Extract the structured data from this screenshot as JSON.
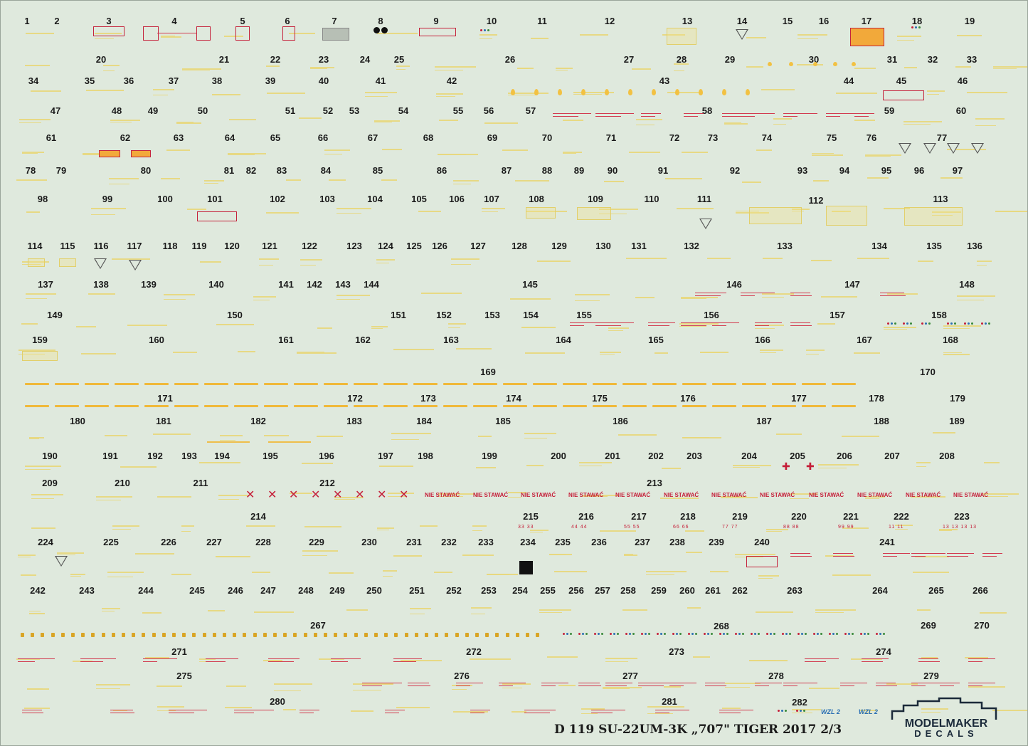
{
  "sheet": {
    "title_line": "D    119 SU-22UM-3K „707\" TIGER 2017 2/3",
    "brand_line1": "MODELMAKER",
    "brand_line2": "DECALS",
    "wzl_label": "WZL 2",
    "warning_text": "NIE STAWAĆ",
    "colors": {
      "background": "#dfe9dd",
      "stencil_yellow": "#e8d77a",
      "stencil_red": "#c51f39",
      "numbers": "#1a1a1a"
    },
    "red_number_pairs": [
      "33  33",
      "44  44",
      "55  55",
      "66  66",
      "77  77",
      "88  88",
      "99  99",
      "11  11",
      "13 13  13 13"
    ]
  },
  "numbers": [
    "1",
    "2",
    "3",
    "4",
    "5",
    "6",
    "7",
    "8",
    "9",
    "10",
    "11",
    "12",
    "13",
    "14",
    "15",
    "16",
    "17",
    "18",
    "19",
    "20",
    "21",
    "22",
    "23",
    "24",
    "25",
    "26",
    "27",
    "28",
    "29",
    "30",
    "31",
    "32",
    "33",
    "34",
    "35",
    "36",
    "37",
    "38",
    "39",
    "40",
    "41",
    "42",
    "43",
    "44",
    "45",
    "46",
    "47",
    "48",
    "49",
    "50",
    "51",
    "52",
    "53",
    "54",
    "55",
    "56",
    "57",
    "58",
    "59",
    "60",
    "61",
    "62",
    "63",
    "64",
    "65",
    "66",
    "67",
    "68",
    "69",
    "70",
    "71",
    "72",
    "73",
    "74",
    "75",
    "76",
    "77",
    "78",
    "79",
    "80",
    "81",
    "82",
    "83",
    "84",
    "85",
    "86",
    "87",
    "88",
    "89",
    "90",
    "91",
    "92",
    "93",
    "94",
    "95",
    "96",
    "97",
    "98",
    "99",
    "100",
    "101",
    "102",
    "103",
    "104",
    "105",
    "106",
    "107",
    "108",
    "109",
    "110",
    "111",
    "112",
    "113",
    "114",
    "115",
    "116",
    "117",
    "118",
    "119",
    "120",
    "121",
    "122",
    "123",
    "124",
    "125",
    "126",
    "127",
    "128",
    "129",
    "130",
    "131",
    "132",
    "133",
    "134",
    "135",
    "136",
    "137",
    "138",
    "139",
    "140",
    "141",
    "142",
    "143",
    "144",
    "145",
    "146",
    "147",
    "148",
    "149",
    "150",
    "151",
    "152",
    "153",
    "154",
    "155",
    "156",
    "157",
    "158",
    "159",
    "160",
    "161",
    "162",
    "163",
    "164",
    "165",
    "166",
    "167",
    "168",
    "169",
    "170",
    "171",
    "172",
    "173",
    "174",
    "175",
    "176",
    "177",
    "178",
    "179",
    "180",
    "181",
    "182",
    "183",
    "184",
    "185",
    "186",
    "187",
    "188",
    "189",
    "190",
    "191",
    "192",
    "193",
    "194",
    "195",
    "196",
    "197",
    "198",
    "199",
    "200",
    "201",
    "202",
    "203",
    "204",
    "205",
    "206",
    "207",
    "208",
    "209",
    "210",
    "211",
    "212",
    "213",
    "214",
    "215",
    "216",
    "217",
    "218",
    "219",
    "220",
    "221",
    "222",
    "223",
    "224",
    "225",
    "226",
    "227",
    "228",
    "229",
    "230",
    "231",
    "232",
    "233",
    "234",
    "235",
    "236",
    "237",
    "238",
    "239",
    "240",
    "241",
    "242",
    "243",
    "244",
    "245",
    "246",
    "247",
    "248",
    "249",
    "250",
    "251",
    "252",
    "253",
    "254",
    "255",
    "256",
    "257",
    "258",
    "259",
    "260",
    "261",
    "262",
    "263",
    "264",
    "265",
    "266",
    "267",
    "268",
    "269",
    "270",
    "271",
    "272",
    "273",
    "274",
    "275",
    "276",
    "277",
    "278",
    "279",
    "280",
    "281",
    "282"
  ]
}
